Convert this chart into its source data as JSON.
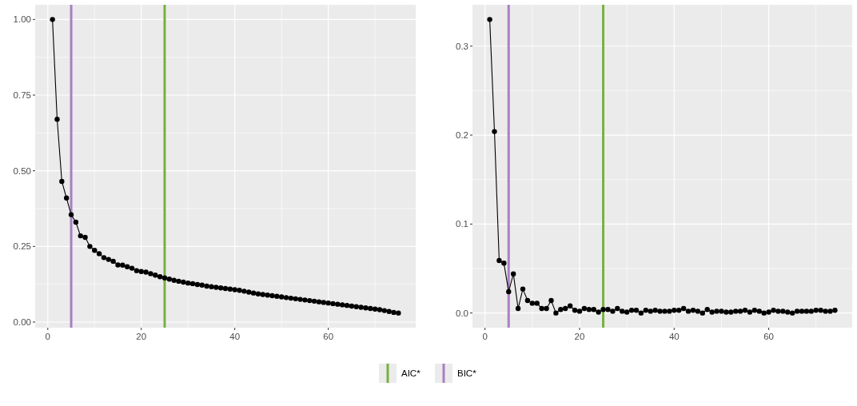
{
  "chart_data": [
    {
      "type": "line",
      "x": [
        1,
        2,
        3,
        4,
        5,
        6,
        7,
        8,
        9,
        10,
        11,
        12,
        13,
        14,
        15,
        16,
        17,
        18,
        19,
        20,
        21,
        22,
        23,
        24,
        25,
        26,
        27,
        28,
        29,
        30,
        31,
        32,
        33,
        34,
        35,
        36,
        37,
        38,
        39,
        40,
        41,
        42,
        43,
        44,
        45,
        46,
        47,
        48,
        49,
        50,
        51,
        52,
        53,
        54,
        55,
        56,
        57,
        58,
        59,
        60,
        61,
        62,
        63,
        64,
        65,
        66,
        67,
        68,
        69,
        70,
        71,
        72,
        73,
        74,
        75
      ],
      "series": [
        {
          "color": "#000000",
          "values": [
            1.0,
            0.67,
            0.465,
            0.41,
            0.355,
            0.33,
            0.285,
            0.28,
            0.25,
            0.237,
            0.226,
            0.213,
            0.207,
            0.201,
            0.189,
            0.188,
            0.183,
            0.178,
            0.17,
            0.167,
            0.165,
            0.16,
            0.155,
            0.15,
            0.146,
            0.142,
            0.138,
            0.135,
            0.132,
            0.129,
            0.127,
            0.124,
            0.122,
            0.119,
            0.117,
            0.115,
            0.113,
            0.111,
            0.109,
            0.107,
            0.105,
            0.102,
            0.099,
            0.096,
            0.093,
            0.091,
            0.089,
            0.087,
            0.085,
            0.083,
            0.081,
            0.079,
            0.077,
            0.075,
            0.073,
            0.071,
            0.069,
            0.067,
            0.065,
            0.063,
            0.061,
            0.059,
            0.057,
            0.055,
            0.053,
            0.051,
            0.049,
            0.047,
            0.045,
            0.043,
            0.041,
            0.038,
            0.035,
            0.032,
            0.03
          ]
        }
      ],
      "marker": "circle",
      "xlim": [
        -2.7,
        78.7
      ],
      "ylim": [
        -0.0185,
        1.0485
      ],
      "xticks": [
        0,
        20,
        40,
        60
      ],
      "yticks": [
        {
          "value": 0,
          "label": "0.00"
        },
        {
          "value": 0.25,
          "label": "0.25"
        },
        {
          "value": 0.5,
          "label": "0.50"
        },
        {
          "value": 0.75,
          "label": "0.75"
        },
        {
          "value": 1,
          "label": "1.00"
        }
      ],
      "grid": true,
      "legend": "bottom",
      "ref_lines": [
        {
          "axis": "x",
          "value": 25,
          "label": "AIC*",
          "color": "#77b13f"
        },
        {
          "axis": "x",
          "value": 5,
          "label": "BIC*",
          "color": "#a97fc4"
        }
      ]
    },
    {
      "type": "line",
      "x": [
        1,
        2,
        3,
        4,
        5,
        6,
        7,
        8,
        9,
        10,
        11,
        12,
        13,
        14,
        15,
        16,
        17,
        18,
        19,
        20,
        21,
        22,
        23,
        24,
        25,
        26,
        27,
        28,
        29,
        30,
        31,
        32,
        33,
        34,
        35,
        36,
        37,
        38,
        39,
        40,
        41,
        42,
        43,
        44,
        45,
        46,
        47,
        48,
        49,
        50,
        51,
        52,
        53,
        54,
        55,
        56,
        57,
        58,
        59,
        60,
        61,
        62,
        63,
        64,
        65,
        66,
        67,
        68,
        69,
        70,
        71,
        72,
        73,
        74
      ],
      "series": [
        {
          "color": "#000000",
          "values": [
            0.33,
            0.204,
            0.059,
            0.056,
            0.024,
            0.044,
            0.005,
            0.027,
            0.014,
            0.011,
            0.011,
            0.005,
            0.005,
            0.014,
            0.0,
            0.004,
            0.005,
            0.008,
            0.003,
            0.002,
            0.005,
            0.004,
            0.004,
            0.001,
            0.004,
            0.004,
            0.002,
            0.005,
            0.002,
            0.001,
            0.003,
            0.003,
            0.0,
            0.003,
            0.002,
            0.003,
            0.002,
            0.002,
            0.002,
            0.003,
            0.003,
            0.005,
            0.002,
            0.003,
            0.002,
            0.0,
            0.004,
            0.001,
            0.002,
            0.002,
            0.001,
            0.001,
            0.002,
            0.002,
            0.003,
            0.001,
            0.003,
            0.002,
            0.0,
            0.001,
            0.003,
            0.002,
            0.002,
            0.001,
            0.0,
            0.002,
            0.002,
            0.002,
            0.002,
            0.003,
            0.003,
            0.002,
            0.002,
            0.003
          ]
        }
      ],
      "marker": "circle",
      "xlim": [
        -2.65,
        77.65
      ],
      "ylim": [
        -0.0165,
        0.3465
      ],
      "xticks": [
        0,
        20,
        40,
        60
      ],
      "yticks": [
        {
          "value": 0,
          "label": "0.0"
        },
        {
          "value": 0.1,
          "label": "0.1"
        },
        {
          "value": 0.2,
          "label": "0.2"
        },
        {
          "value": 0.3,
          "label": "0.3"
        }
      ],
      "grid": true,
      "ref_lines": [
        {
          "axis": "x",
          "value": 25,
          "color": "#77b13f"
        },
        {
          "axis": "x",
          "value": 5,
          "color": "#a97fc4"
        }
      ]
    }
  ]
}
